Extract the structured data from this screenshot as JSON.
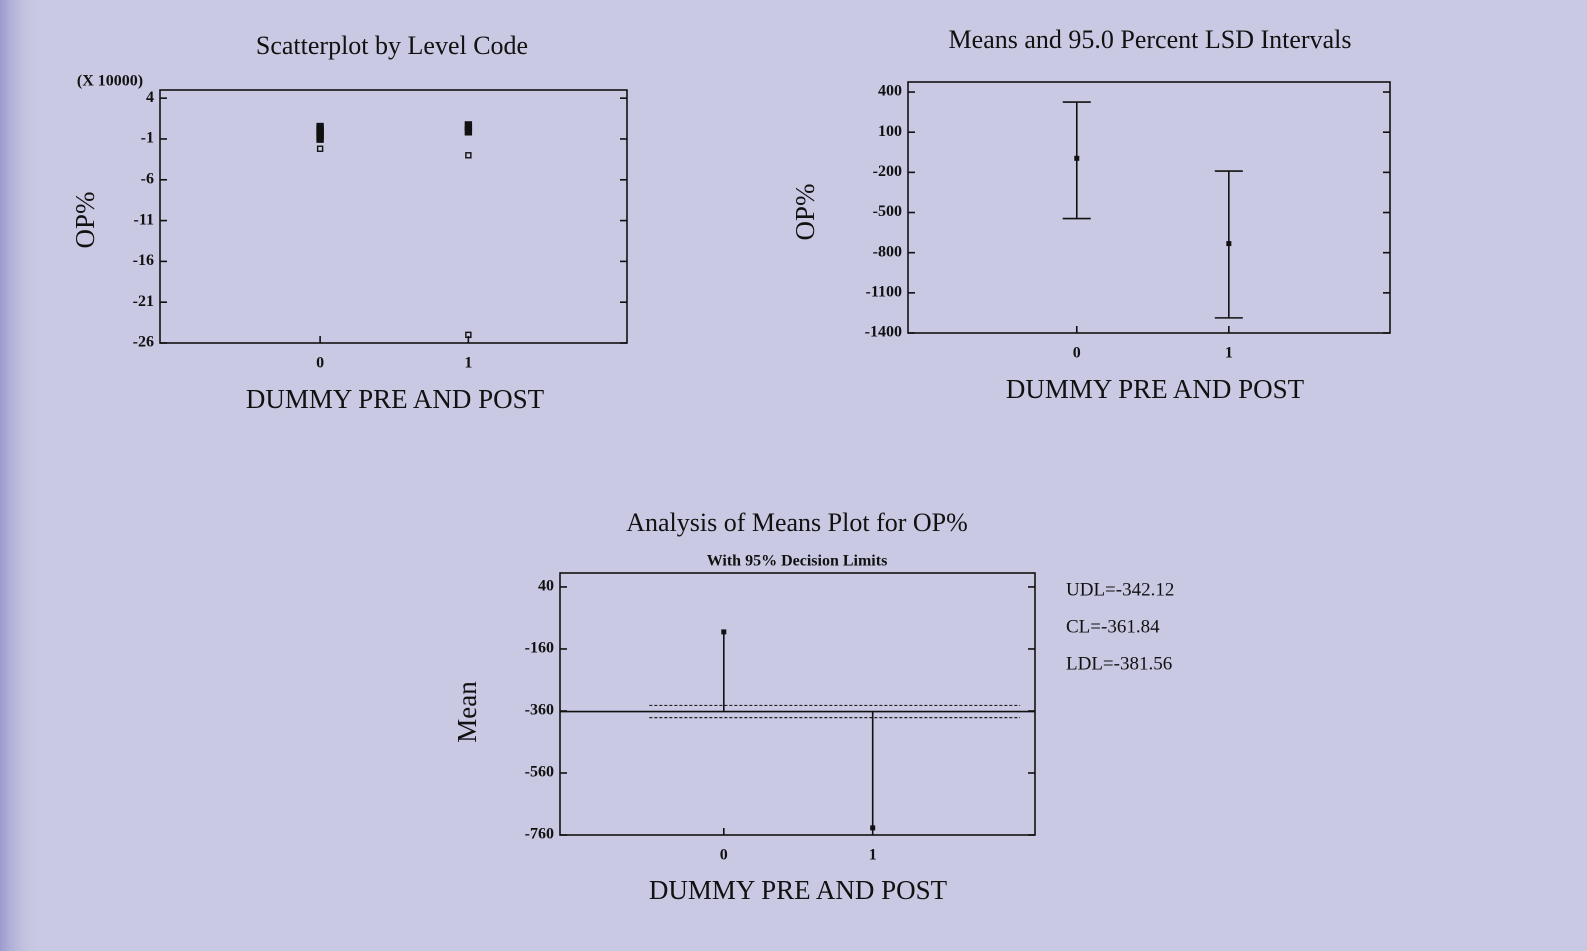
{
  "chart_data": [
    {
      "type": "scatter",
      "title": "Scatterplot by Level Code",
      "multiplier": "(X 10000)",
      "x_label": "DUMMY PRE AND POST",
      "y_label": "OP%",
      "x": [
        0,
        0,
        0,
        0,
        0,
        1,
        1,
        1,
        1
      ],
      "values": [
        0.4,
        0,
        -0.5,
        -0.9,
        -2.2,
        0.6,
        0,
        -3,
        -25
      ],
      "filled": [
        true,
        true,
        true,
        true,
        false,
        true,
        true,
        false,
        false
      ],
      "xlim": [
        -1.08,
        2.07
      ],
      "xticks": [
        0,
        1
      ],
      "ylim": [
        -26,
        5
      ],
      "yticks": [
        4,
        -1,
        -6,
        -11,
        -16,
        -21,
        -26
      ]
    },
    {
      "type": "errorbar",
      "title": "Means and 95.0 Percent LSD Intervals",
      "x_label": "DUMMY PRE AND POST",
      "y_label": "OP%",
      "x": [
        0,
        1
      ],
      "values": [
        -95,
        -732
      ],
      "lower": [
        -545,
        -1287
      ],
      "upper": [
        325,
        -190
      ],
      "xlim": [
        -1.11,
        2.06
      ],
      "xticks": [
        0,
        1
      ],
      "ylim": [
        -1400,
        475
      ],
      "yticks": [
        400,
        100,
        -200,
        -500,
        -800,
        -1100,
        -1400
      ]
    },
    {
      "type": "anom",
      "title": "Analysis of Means Plot for OP%",
      "subtitle": "With 95% Decision Limits",
      "x_label": "DUMMY PRE AND POST",
      "y_label": "Mean",
      "x": [
        0,
        1
      ],
      "values": [
        -105,
        -737
      ],
      "udl": -342.12,
      "cl": -361.84,
      "ldl": -381.56,
      "annotations": [
        "UDL=-342.12",
        "CL=-361.84",
        "LDL=-381.56"
      ],
      "xlim": [
        -1.1,
        2.09
      ],
      "xticks": [
        0,
        1
      ],
      "ylim": [
        -760,
        85
      ],
      "yticks": [
        40,
        -160,
        -360,
        -560,
        -760
      ]
    }
  ]
}
